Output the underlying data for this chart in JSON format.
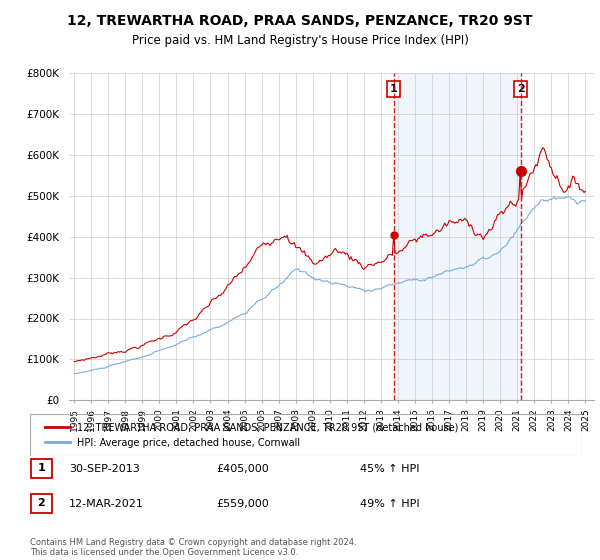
{
  "title": "12, TREWARTHA ROAD, PRAA SANDS, PENZANCE, TR20 9ST",
  "subtitle": "Price paid vs. HM Land Registry's House Price Index (HPI)",
  "ylabel_ticks": [
    "£0",
    "£100K",
    "£200K",
    "£300K",
    "£400K",
    "£500K",
    "£600K",
    "£700K",
    "£800K"
  ],
  "ytick_values": [
    0,
    100000,
    200000,
    300000,
    400000,
    500000,
    600000,
    700000,
    800000
  ],
  "ylim": [
    0,
    800000
  ],
  "xlim_left": 1994.7,
  "xlim_right": 2025.5,
  "legend_line1": "12, TREWARTHA ROAD, PRAA SANDS, PENZANCE, TR20 9ST (detached house)",
  "legend_line2": "HPI: Average price, detached house, Cornwall",
  "transaction1_date": "30-SEP-2013",
  "transaction1_price": "£405,000",
  "transaction1_hpi": "45% ↑ HPI",
  "transaction2_date": "12-MAR-2021",
  "transaction2_price": "£559,000",
  "transaction2_hpi": "49% ↑ HPI",
  "footnote": "Contains HM Land Registry data © Crown copyright and database right 2024.\nThis data is licensed under the Open Government Licence v3.0.",
  "red_color": "#cc0000",
  "blue_color": "#7aaadd",
  "shade_color": "#ddeeff",
  "vline1_x": 2013.75,
  "vline2_x": 2021.2,
  "marker1_y": 405000,
  "marker2_y": 559000,
  "background_color": "#ffffff",
  "grid_color": "#cccccc"
}
